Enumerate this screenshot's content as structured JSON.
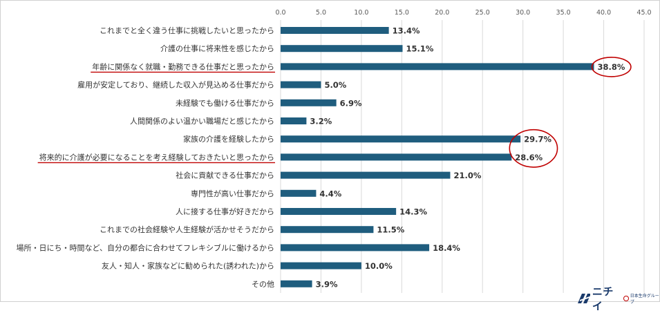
{
  "chart_data": {
    "type": "bar",
    "orientation": "horizontal",
    "title": "",
    "xlabel": "",
    "ylabel": "",
    "xlim": [
      0,
      45
    ],
    "tick_values": [
      0,
      5,
      10,
      15,
      20,
      25,
      30,
      35,
      40,
      45
    ],
    "tick_labels": [
      "0.0",
      "5.0",
      "10.0",
      "15.0",
      "20.0",
      "25.0",
      "30.0",
      "35.0",
      "40.0",
      "45.0"
    ],
    "value_suffix": "%",
    "grid": true,
    "bar_color": "#1f5d7e",
    "highlight_color": "#c00000",
    "categories": [
      "これまでと全く違う仕事に挑戦したいと思ったから",
      "介護の仕事に将来性を感じたから",
      "年齢に関係なく就職・勤務できる仕事だと思ったから",
      "雇用が安定しており、継続した収入が見込める仕事だから",
      "未経験でも働ける仕事だから",
      "人間関係のよい温かい職場だと感じたから",
      "家族の介護を経験したから",
      "将来的に介護が必要になることを考え経験しておきたいと思ったから",
      "社会に貢献できる仕事だから",
      "専門性が高い仕事だから",
      "人に接する仕事が好きだから",
      "これまでの社会経験や人生経験が活かせそうだから",
      "場所・日にち・時間など、自分の都合に合わせてフレキシブルに働けるから",
      "友人・知人・家族などに勧められた(誘われた)から",
      "その他"
    ],
    "values": [
      13.4,
      15.1,
      38.8,
      5.0,
      6.9,
      3.2,
      29.7,
      28.6,
      21.0,
      4.4,
      14.3,
      11.5,
      18.4,
      10.0,
      3.9
    ],
    "value_labels": [
      "13.4%",
      "15.1%",
      "38.8%",
      "5.0%",
      "6.9%",
      "3.2%",
      "29.7%",
      "28.6%",
      "21.0%",
      "4.4%",
      "14.3%",
      "11.5%",
      "18.4%",
      "10.0%",
      "3.9%"
    ],
    "underlined_categories": [
      2,
      7
    ],
    "circled_values": [
      [
        2
      ],
      [
        6,
        7
      ]
    ]
  },
  "logo": {
    "name": "ニチイ",
    "sub": "日本生命グループ"
  }
}
